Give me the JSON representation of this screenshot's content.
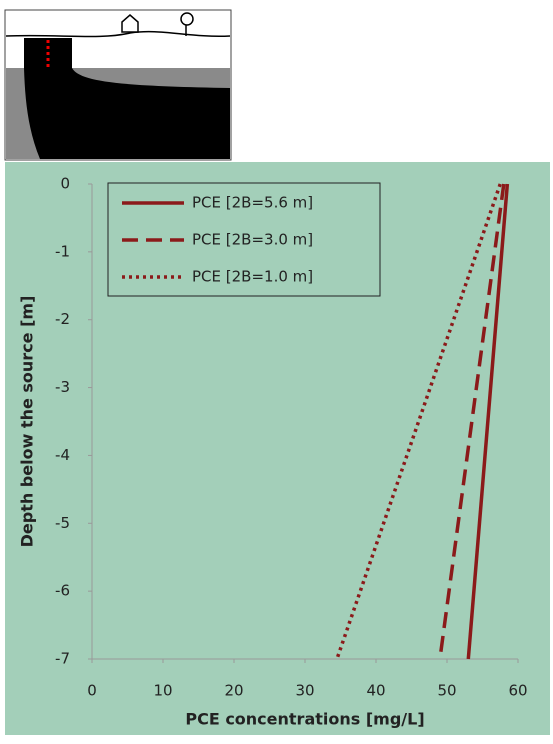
{
  "chart_data": {
    "type": "line",
    "xlabel": "PCE concentrations [mg/L]",
    "ylabel": "Depth below the source [m]",
    "xlim": [
      0,
      60
    ],
    "xticks": [
      0,
      10,
      20,
      30,
      40,
      50,
      60
    ],
    "ylim": [
      -7,
      0
    ],
    "yticks": [
      0,
      -1,
      -2,
      -3,
      -4,
      -5,
      -6,
      -7
    ],
    "legend": "upper left",
    "series": [
      {
        "name": "PCE [2B=5.6 m]",
        "color": "#8b1a1a",
        "dash": "solid",
        "x": [
          58.5,
          53
        ],
        "y": [
          0,
          -7
        ]
      },
      {
        "name": "PCE [2B=3.0 m]",
        "color": "#8b1a1a",
        "dash": "dashed",
        "x": [
          58,
          49
        ],
        "y": [
          0,
          -7
        ]
      },
      {
        "name": "PCE [2B=1.0 m]",
        "color": "#8b1a1a",
        "dash": "dotted",
        "x": [
          57.5,
          34.5
        ],
        "y": [
          0,
          -7
        ]
      }
    ]
  }
}
